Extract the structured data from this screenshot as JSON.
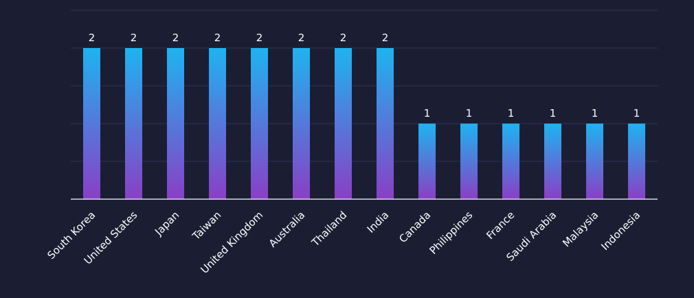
{
  "chart_data": {
    "type": "bar",
    "categories": [
      "South Korea",
      "United States",
      "Japan",
      "Taiwan",
      "United Kingdom",
      "Australia",
      "Thailand",
      "India",
      "Canada",
      "Philippines",
      "France",
      "Saudi Arabia",
      "Malaysia",
      "Indonesia"
    ],
    "values": [
      2,
      2,
      2,
      2,
      2,
      2,
      2,
      2,
      1,
      1,
      1,
      1,
      1,
      1
    ],
    "ylim": [
      0,
      2.5
    ],
    "grid": true,
    "legend": "none",
    "data_labels": true
  },
  "colors": {
    "background": "#1b1e33",
    "bar_top": "#1eb3f0",
    "bar_bottom": "#8a3fc6",
    "grid": "#2f3350",
    "axis": "#d8dae6",
    "text": "#ffffff"
  }
}
